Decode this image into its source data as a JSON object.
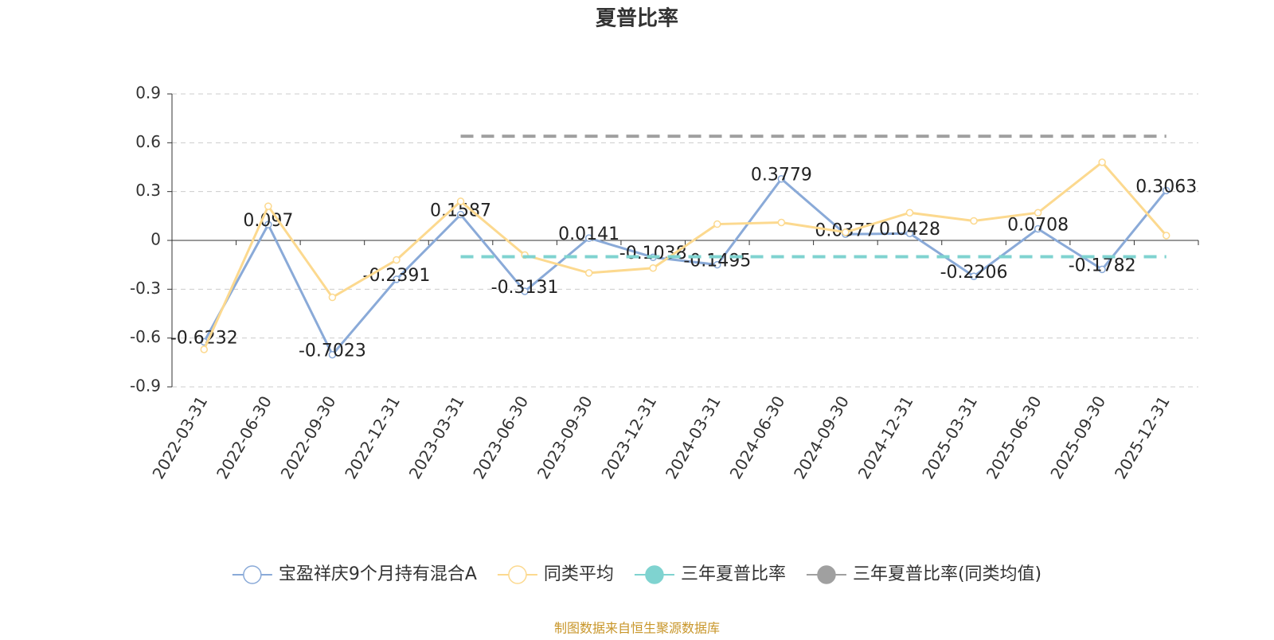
{
  "chart_data": {
    "type": "line",
    "title": "夏普比率",
    "categories": [
      "2022-03-31",
      "2022-06-30",
      "2022-09-30",
      "2022-12-31",
      "2023-03-31",
      "2023-06-30",
      "2023-09-30",
      "2023-12-31",
      "2024-03-31",
      "2024-06-30",
      "2024-09-30",
      "2024-12-31",
      "2025-03-31",
      "2025-06-30",
      "2025-09-30",
      "2025-12-31"
    ],
    "series": [
      {
        "name": "宝盈祥庆9个月持有混合A",
        "color": "#8aaad8",
        "symbol": "emptyCircle",
        "values": [
          -0.6232,
          0.097,
          -0.7023,
          -0.2391,
          0.1587,
          -0.3131,
          0.0141,
          -0.1038,
          -0.1495,
          0.3779,
          0.0377,
          0.0428,
          -0.2206,
          0.0708,
          -0.1782,
          0.3063
        ],
        "show_labels": true
      },
      {
        "name": "同类平均",
        "color": "#fcd98f",
        "symbol": "emptyCircle",
        "values": [
          -0.67,
          0.21,
          -0.35,
          -0.12,
          0.24,
          -0.09,
          -0.2,
          -0.17,
          0.1,
          0.11,
          0.05,
          0.17,
          0.12,
          0.17,
          0.48,
          0.03
        ]
      },
      {
        "name": "三年夏普比率",
        "color": "#7fd3d0",
        "symbol": "circle",
        "dashed": true,
        "values": [
          null,
          null,
          null,
          null,
          -0.1,
          -0.1,
          -0.1,
          -0.1,
          -0.1,
          -0.1,
          -0.1,
          -0.1,
          -0.1,
          -0.1,
          -0.1,
          -0.1
        ]
      },
      {
        "name": "三年夏普比率(同类均值)",
        "color": "#a0a0a0",
        "symbol": "circle",
        "dashed": true,
        "values": [
          null,
          null,
          null,
          null,
          0.64,
          0.64,
          0.64,
          0.64,
          0.64,
          0.64,
          0.64,
          0.64,
          0.64,
          0.64,
          0.64,
          0.64
        ]
      }
    ],
    "ylim": [
      -0.9,
      0.9
    ],
    "yticks": [
      -0.9,
      -0.6,
      -0.3,
      0,
      0.3,
      0.6,
      0.9
    ],
    "grid": true,
    "legend": "bottom",
    "source": "制图数据来自恒生聚源数据库"
  }
}
